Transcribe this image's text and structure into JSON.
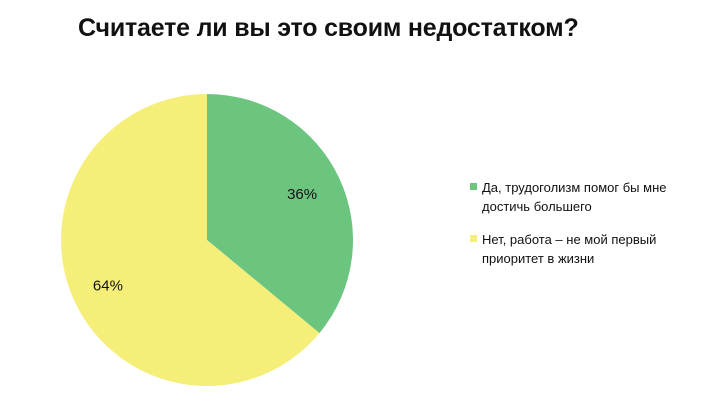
{
  "chart_data": {
    "type": "pie",
    "title": "Считаете ли вы это своим недостатком?",
    "slices": [
      {
        "label": "Да, трудоголизм помог бы мне достичь большего",
        "value": 36,
        "display": "36%",
        "color": "#6cc57e"
      },
      {
        "label": "Нет, работа – не мой первый приоритет в жизни",
        "value": 64,
        "display": "64%",
        "color": "#f5ef7a"
      }
    ],
    "legend_position": "right"
  }
}
